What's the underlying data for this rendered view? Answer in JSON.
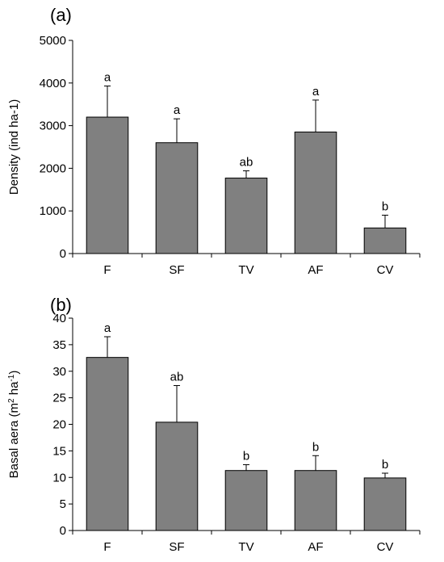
{
  "chart_data": [
    {
      "type": "bar",
      "panel_label": "(a)",
      "categories": [
        "F",
        "SF",
        "TV",
        "AF",
        "CV"
      ],
      "values": [
        3200,
        2600,
        1770,
        2850,
        600
      ],
      "error": [
        730,
        560,
        170,
        750,
        300
      ],
      "significance": [
        "a",
        "a",
        "ab",
        "a",
        "b"
      ],
      "ylabel": "Density (ind ha-1)",
      "ylim": [
        0,
        5000
      ],
      "yticks": [
        0,
        1000,
        2000,
        3000,
        4000,
        5000
      ],
      "bar_color": "#808080"
    },
    {
      "type": "bar",
      "panel_label": "(b)",
      "categories": [
        "F",
        "SF",
        "TV",
        "AF",
        "CV"
      ],
      "values": [
        32.6,
        20.4,
        11.3,
        11.3,
        9.9
      ],
      "error": [
        3.9,
        6.9,
        1.1,
        2.8,
        0.9
      ],
      "significance": [
        "a",
        "ab",
        "b",
        "b",
        "b"
      ],
      "ylabel_parts": [
        "Basal aera (m",
        "2",
        " ha",
        "-1",
        ")"
      ],
      "ylim": [
        0,
        40
      ],
      "yticks": [
        0,
        5,
        10,
        15,
        20,
        25,
        30,
        35,
        40
      ],
      "bar_color": "#808080"
    }
  ]
}
